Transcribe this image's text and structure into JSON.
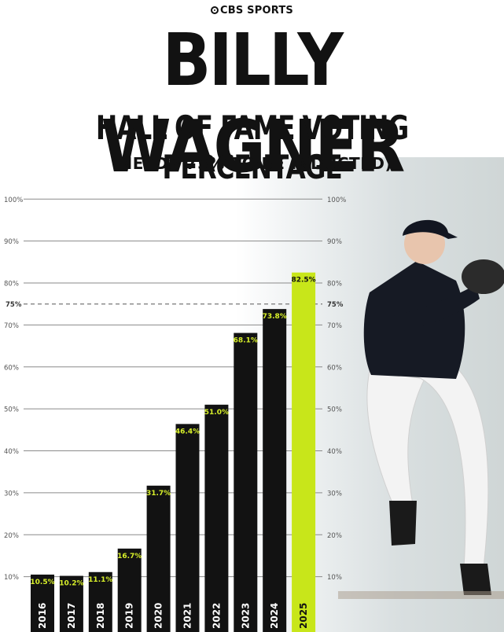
{
  "branding": {
    "logo_text": "CBS SPORTS"
  },
  "header": {
    "title": "BILLY WAGNER",
    "subtitle": "HALL OF FAME VOTING PERCENTAGE",
    "note": "(NEEDS 75% TO BE INDUCTED)"
  },
  "colors": {
    "bar": "#121212",
    "highlight": "#c8e61a",
    "label_text_bar": "#d8f02a",
    "label_text_highlight": "#121212",
    "grid": "#8a8a8a",
    "text": "#121212"
  },
  "chart_data": {
    "type": "bar",
    "categories": [
      "2016",
      "2017",
      "2018",
      "2019",
      "2020",
      "2021",
      "2022",
      "2023",
      "2024",
      "2025"
    ],
    "values": [
      10.5,
      10.2,
      11.1,
      16.7,
      31.7,
      46.4,
      51.0,
      68.1,
      73.8,
      82.5
    ],
    "value_labels": [
      "10.5%",
      "10.2%",
      "11.1%",
      "16.7%",
      "31.7%",
      "46.4%",
      "51.0%",
      "68.1%",
      "73.8%",
      "82.5%"
    ],
    "highlight_category": "2025",
    "ylim": [
      0,
      100
    ],
    "y_ticks": [
      10,
      20,
      30,
      40,
      50,
      60,
      70,
      80,
      90,
      100
    ],
    "y_tick_labels": [
      "10%",
      "20%",
      "30%",
      "40%",
      "50%",
      "60%",
      "70%",
      "80%",
      "90%",
      "100%"
    ],
    "threshold": {
      "value": 75,
      "label": "75%",
      "style": "dashed"
    },
    "grid": true,
    "title": "",
    "xlabel": "",
    "ylabel": ""
  }
}
